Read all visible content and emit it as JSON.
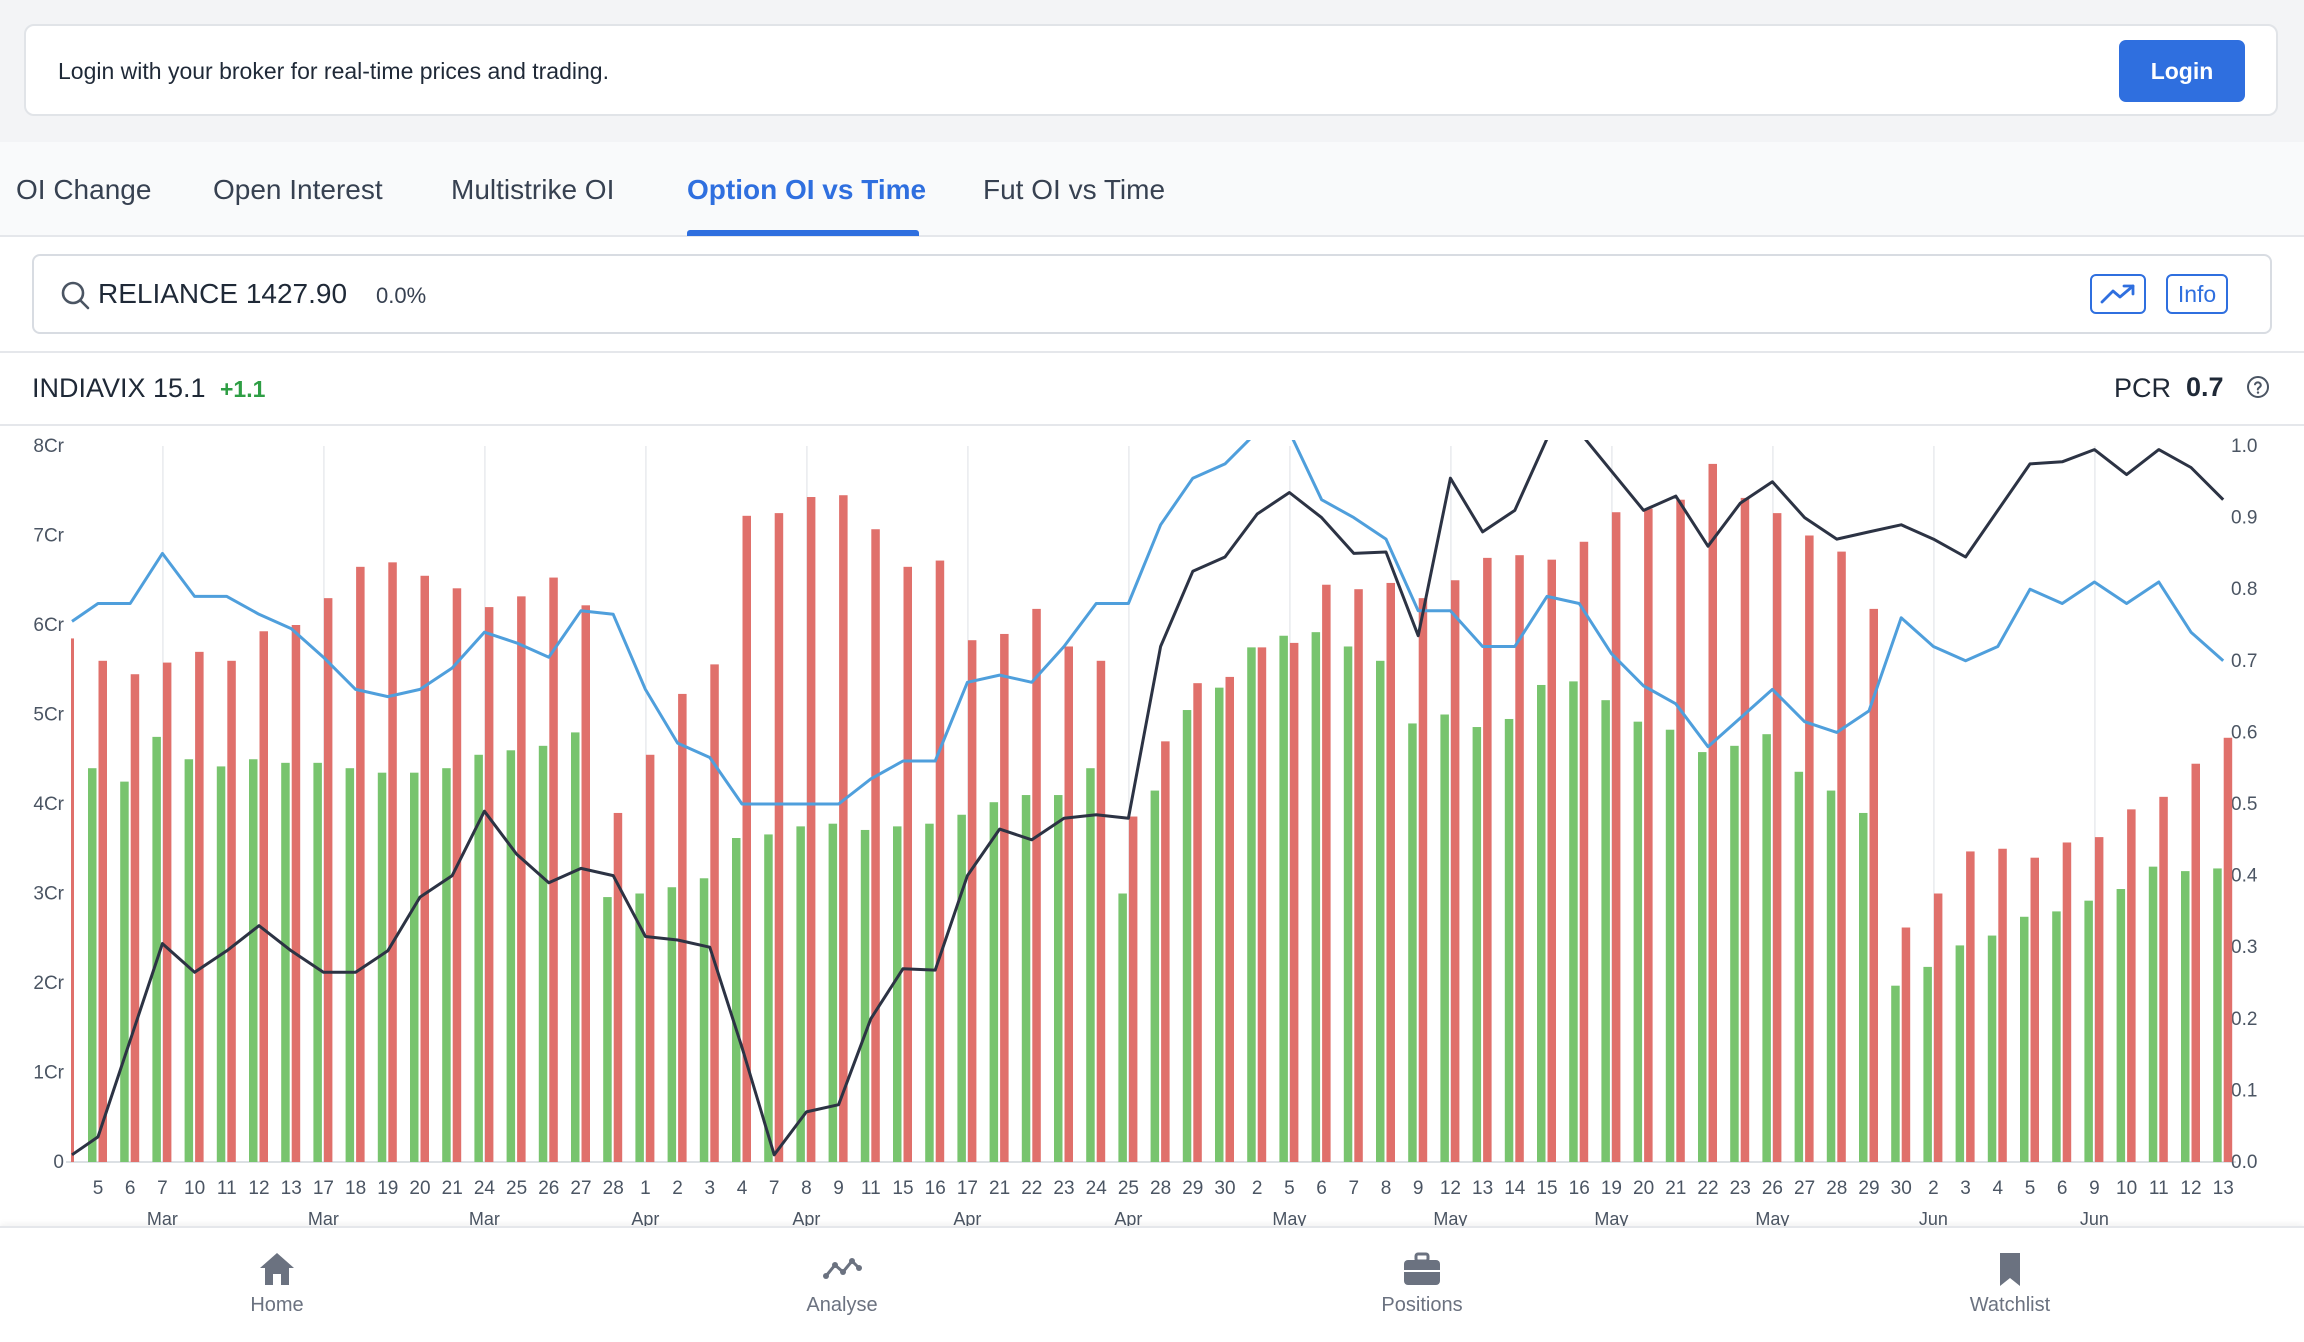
{
  "banner": {
    "message": "Login with your broker for real-time prices and trading.",
    "login_label": "Login"
  },
  "tabs": [
    {
      "label": "OI Change",
      "active": false
    },
    {
      "label": "Open Interest",
      "active": false
    },
    {
      "label": "Multistrike OI",
      "active": false
    },
    {
      "label": "Option OI vs Time",
      "active": true
    },
    {
      "label": "Fut OI vs Time",
      "active": false
    }
  ],
  "search": {
    "symbol_text": "RELIANCE 1427.90",
    "change_pct": "0.0%",
    "info_label": "Info"
  },
  "stats": {
    "vix_label": "INDIAVIX 15.1",
    "vix_change": "+1.1",
    "pcr_label": "PCR",
    "pcr_value": "0.7"
  },
  "nav": [
    {
      "label": "Home",
      "icon": "home-icon"
    },
    {
      "label": "Analyse",
      "icon": "analyse-icon"
    },
    {
      "label": "Positions",
      "icon": "briefcase-icon"
    },
    {
      "label": "Watchlist",
      "icon": "bookmark-icon"
    }
  ],
  "colors": {
    "accent": "#2f6fdf",
    "put_bar": "#78c46e",
    "call_bar": "#e0706b",
    "price_line": "#2c3344",
    "pcr_line": "#4f9fdc"
  },
  "chart_data": {
    "type": "bar",
    "left_ticks": [
      "0",
      "1Cr",
      "2Cr",
      "3Cr",
      "4Cr",
      "5Cr",
      "6Cr",
      "7Cr",
      "8Cr"
    ],
    "right_ticks": [
      "0.0",
      "0.1",
      "0.2",
      "0.3",
      "0.4",
      "0.5",
      "0.6",
      "0.7",
      "0.8",
      "0.9",
      "1.0"
    ],
    "ylim_left": [
      0,
      8
    ],
    "ylim_right": [
      0,
      1
    ],
    "categories": [
      "5",
      "6",
      "7",
      "10",
      "11",
      "12",
      "13",
      "17",
      "18",
      "19",
      "20",
      "21",
      "24",
      "25",
      "26",
      "27",
      "28",
      "1",
      "2",
      "3",
      "4",
      "7",
      "8",
      "9",
      "11",
      "15",
      "16",
      "17",
      "21",
      "22",
      "23",
      "24",
      "25",
      "28",
      "29",
      "30",
      "2",
      "5",
      "6",
      "7",
      "8",
      "9",
      "12",
      "13",
      "14",
      "15",
      "16",
      "19",
      "20",
      "21",
      "22",
      "23",
      "26",
      "27",
      "28",
      "29",
      "30",
      "2",
      "3",
      "4",
      "5",
      "6",
      "9",
      "10",
      "11",
      "12",
      "13"
    ],
    "month_labels": [
      {
        "label": "Mar",
        "index": 2
      },
      {
        "label": "Mar",
        "index": 7
      },
      {
        "label": "Mar",
        "index": 12
      },
      {
        "label": "Apr",
        "index": 17
      },
      {
        "label": "Apr",
        "index": 22
      },
      {
        "label": "Apr",
        "index": 27
      },
      {
        "label": "Apr",
        "index": 32
      },
      {
        "label": "May",
        "index": 37
      },
      {
        "label": "May",
        "index": 42
      },
      {
        "label": "May",
        "index": 47
      },
      {
        "label": "May",
        "index": 52
      },
      {
        "label": "Jun",
        "index": 57
      },
      {
        "label": "Jun",
        "index": 62
      }
    ],
    "series": [
      {
        "values": [
          4.4,
          4.25,
          4.75,
          4.5,
          4.42,
          4.5,
          4.46,
          4.46,
          4.4,
          4.35,
          4.35,
          4.4,
          4.55,
          4.6,
          4.65,
          4.8,
          2.96,
          3.0,
          3.07,
          3.17,
          3.62,
          3.66,
          3.75,
          3.78,
          3.71,
          3.75,
          3.78,
          3.88,
          4.02,
          4.1,
          4.1,
          4.4,
          3.0,
          4.15,
          5.05,
          5.3,
          5.75,
          5.88,
          5.92,
          5.76,
          5.6,
          4.9,
          5.0,
          4.86,
          4.95,
          5.33,
          5.37,
          5.16,
          4.92,
          4.83,
          4.58,
          4.65,
          4.78,
          4.36,
          4.15,
          3.9,
          1.97,
          2.18,
          2.42,
          2.53,
          2.74,
          2.8,
          2.92,
          3.05,
          3.3,
          3.25,
          3.28
        ]
      },
      {
        "values": [
          5.6,
          5.45,
          5.58,
          5.7,
          5.6,
          5.93,
          6.0,
          6.3,
          6.65,
          6.7,
          6.55,
          6.41,
          6.2,
          6.32,
          6.53,
          6.22,
          3.9,
          4.55,
          5.23,
          5.56,
          7.22,
          7.25,
          7.43,
          7.45,
          7.07,
          6.65,
          6.72,
          5.83,
          5.9,
          6.18,
          5.76,
          5.6,
          3.86,
          4.7,
          5.35,
          5.42,
          5.75,
          5.8,
          6.45,
          6.4,
          6.47,
          6.3,
          6.5,
          6.75,
          6.78,
          6.73,
          6.93,
          7.26,
          7.3,
          7.4,
          7.8,
          7.42,
          7.25,
          7.0,
          6.82,
          6.18,
          2.62,
          3.0,
          3.47,
          3.5,
          3.4,
          3.57,
          3.63,
          3.94,
          4.08,
          4.45,
          4.74
        ]
      },
      {
        "values": [
          0.035,
          0.17,
          0.305,
          0.265,
          0.295,
          0.33,
          0.295,
          0.265,
          0.265,
          0.295,
          0.37,
          0.4,
          0.49,
          0.43,
          0.39,
          0.41,
          0.4,
          0.315,
          0.31,
          0.3,
          0.16,
          0.01,
          0.07,
          0.08,
          0.2,
          0.27,
          0.268,
          0.4,
          0.465,
          0.45,
          0.48,
          0.485,
          0.48,
          0.72,
          0.825,
          0.845,
          0.905,
          0.935,
          0.9,
          0.85,
          0.852,
          0.735,
          0.955,
          0.88,
          0.91,
          1.01,
          1.02,
          0.965,
          0.91,
          0.93,
          0.86,
          0.92,
          0.95,
          0.9,
          0.87,
          0.88,
          0.89,
          0.87,
          0.845,
          0.91,
          0.975,
          0.978,
          0.995,
          0.96,
          0.995,
          0.97,
          0.925
        ]
      },
      {
        "values": [
          0.78,
          0.78,
          0.85,
          0.79,
          0.79,
          0.765,
          0.745,
          0.705,
          0.66,
          0.65,
          0.66,
          0.69,
          0.74,
          0.725,
          0.705,
          0.77,
          0.765,
          0.66,
          0.585,
          0.565,
          0.5,
          0.5,
          0.5,
          0.5,
          0.535,
          0.56,
          0.56,
          0.67,
          0.68,
          0.67,
          0.72,
          0.78,
          0.78,
          0.89,
          0.955,
          0.975,
          1.02,
          1.02,
          0.925,
          0.9,
          0.87,
          0.77,
          0.77,
          0.72,
          0.72,
          0.79,
          0.78,
          0.71,
          0.665,
          0.64,
          0.58,
          0.62,
          0.66,
          0.615,
          0.6,
          0.63,
          0.76,
          0.72,
          0.7,
          0.72,
          0.8,
          0.78,
          0.81,
          0.78,
          0.81,
          0.74,
          0.7
        ]
      }
    ]
  }
}
